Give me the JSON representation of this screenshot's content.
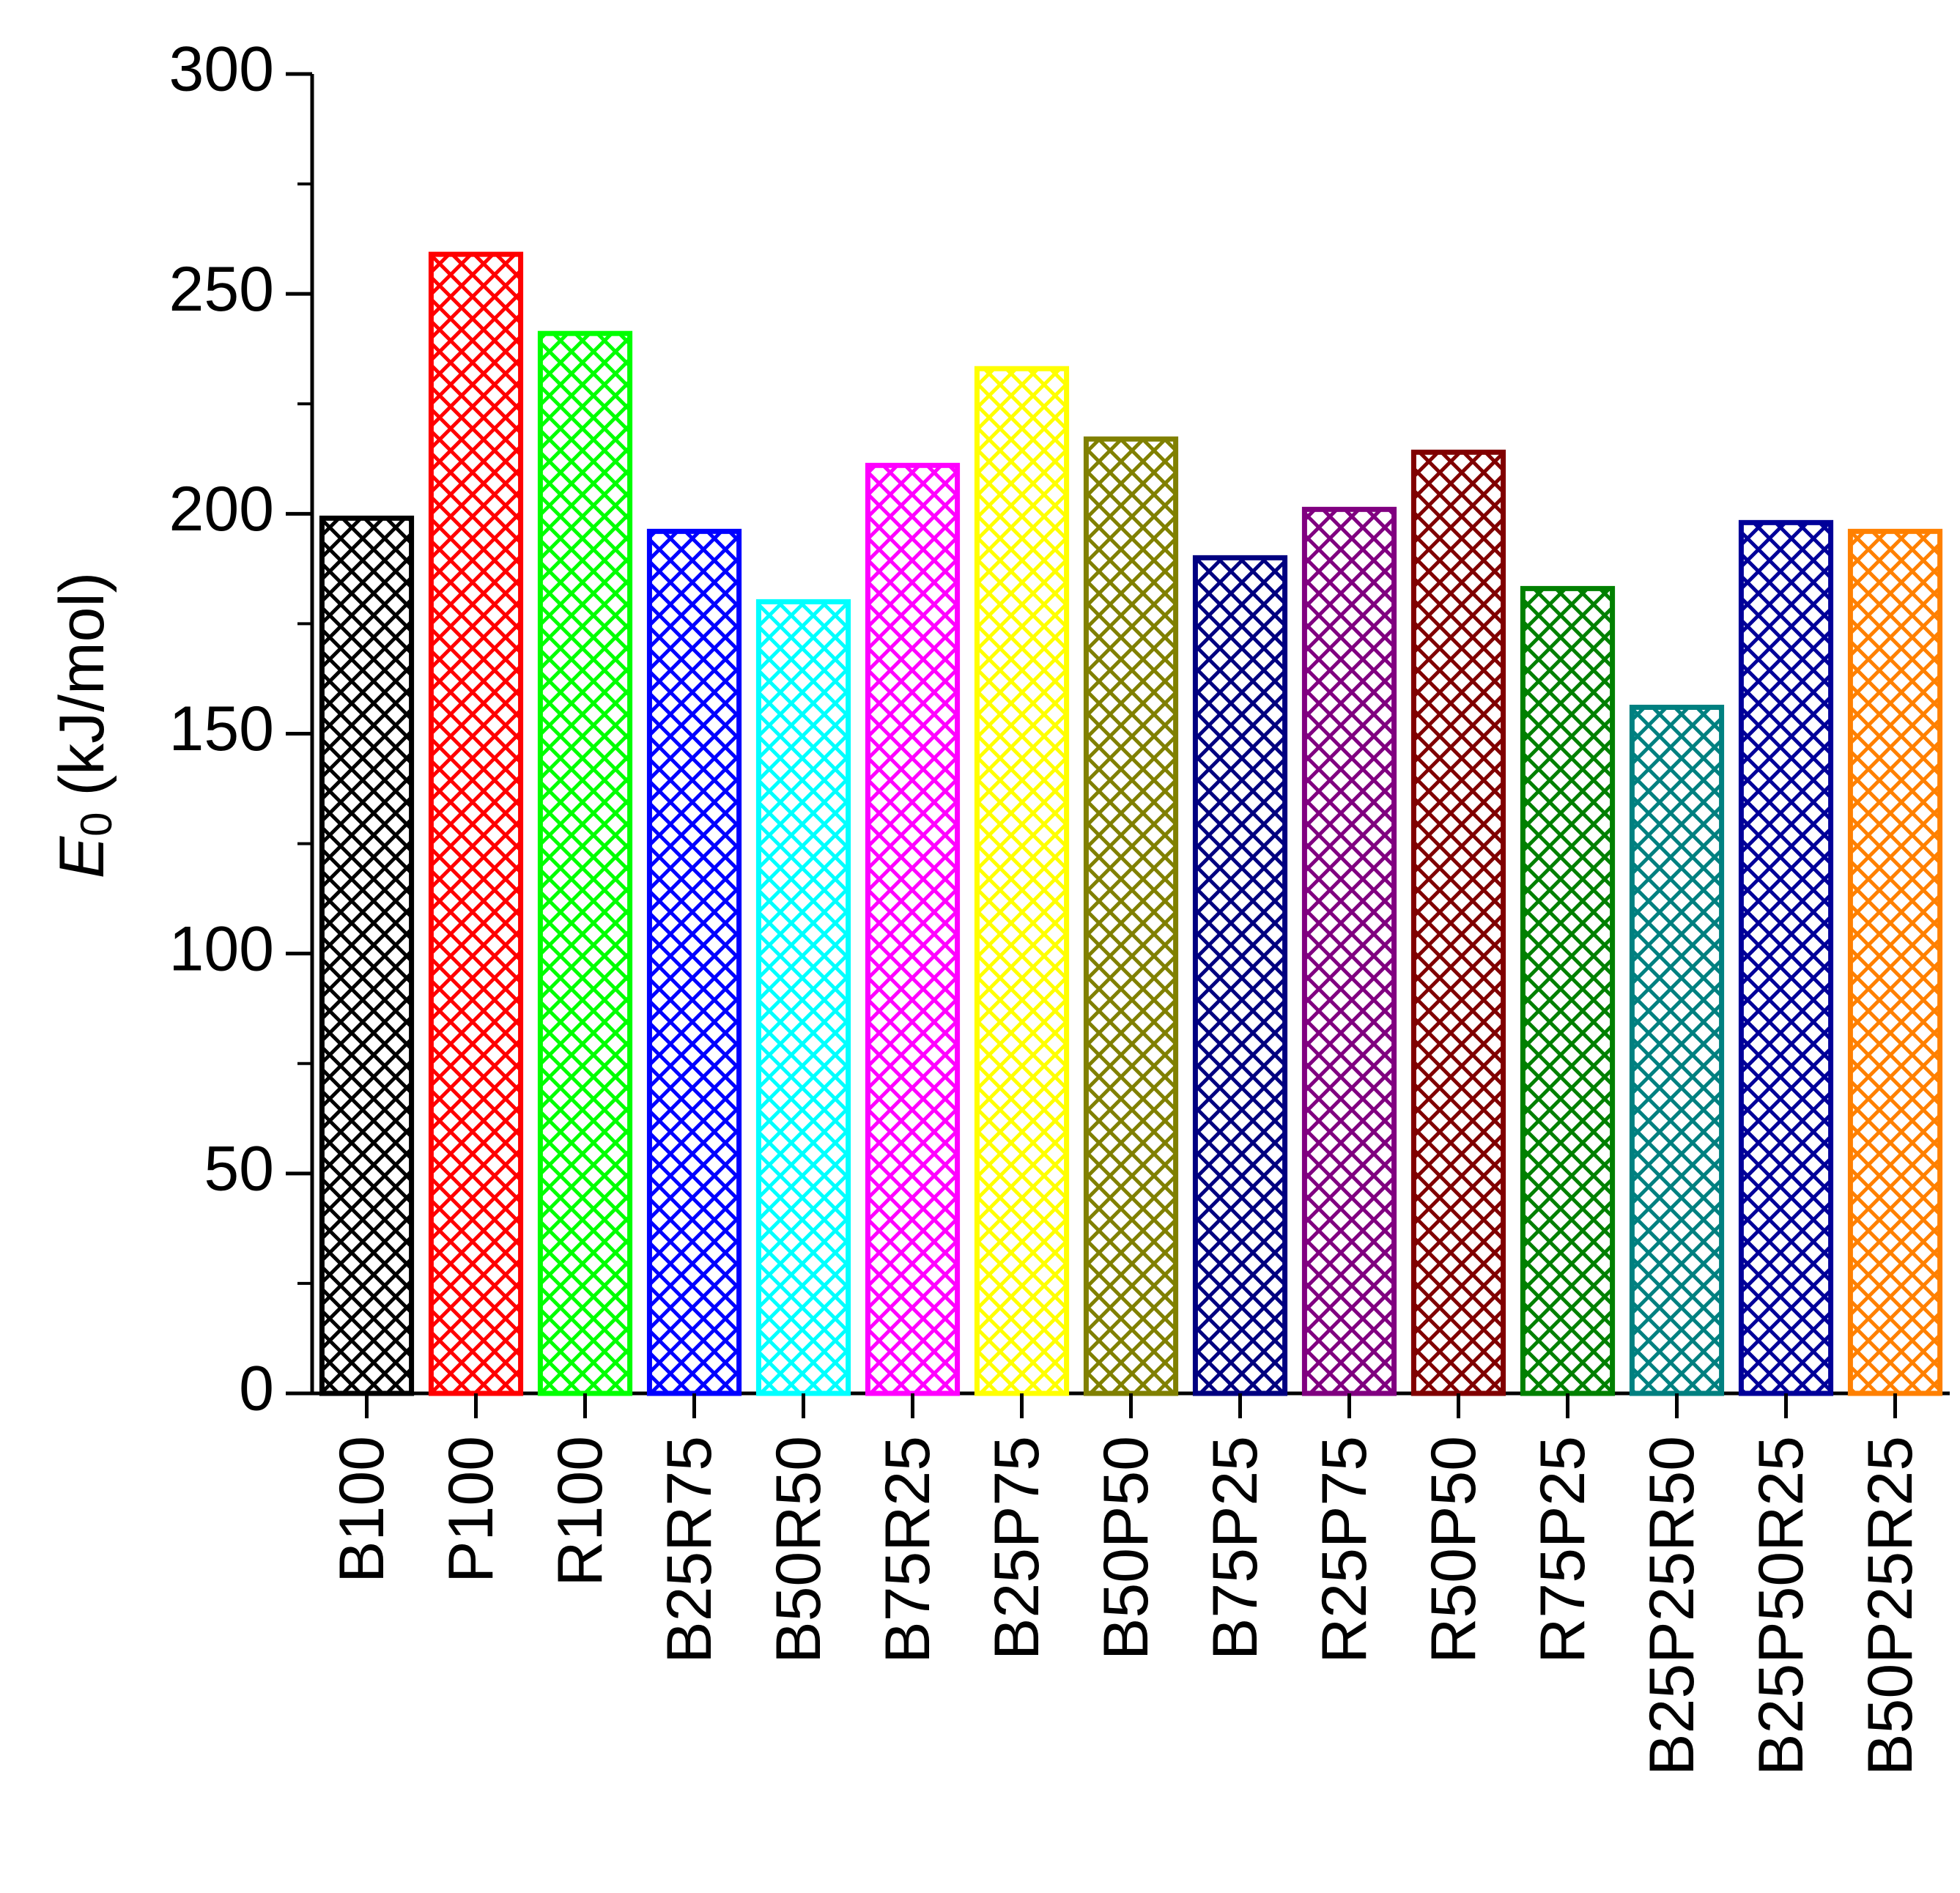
{
  "chart_data": {
    "type": "bar",
    "ylabel": {
      "main": "E",
      "sub": "0",
      "unit": "(kJ/mol)"
    },
    "categories": [
      "B100",
      "P100",
      "R100",
      "B25R75",
      "B50R50",
      "B75R25",
      "B25P75",
      "B50P50",
      "B75P25",
      "R25P75",
      "R50P50",
      "R75P25",
      "B25P25R50",
      "B25P50R25",
      "B50P25R25"
    ],
    "values": [
      199,
      259,
      241,
      196,
      180,
      211,
      233,
      217,
      190,
      201,
      214,
      183,
      156,
      198,
      196
    ],
    "colors": [
      "#000000",
      "#ff0000",
      "#00ff00",
      "#0000ff",
      "#00ffff",
      "#ff00ff",
      "#ffff00",
      "#808000",
      "#000080",
      "#800080",
      "#800000",
      "#008000",
      "#008080",
      "#000099",
      "#ff8000"
    ],
    "ylim": [
      0,
      300
    ],
    "yticks": [
      0,
      50,
      100,
      150,
      200,
      250,
      300
    ],
    "yminorticks": [
      25,
      75,
      125,
      175,
      225,
      275
    ],
    "hatch": "crosshatch",
    "grid": false
  }
}
